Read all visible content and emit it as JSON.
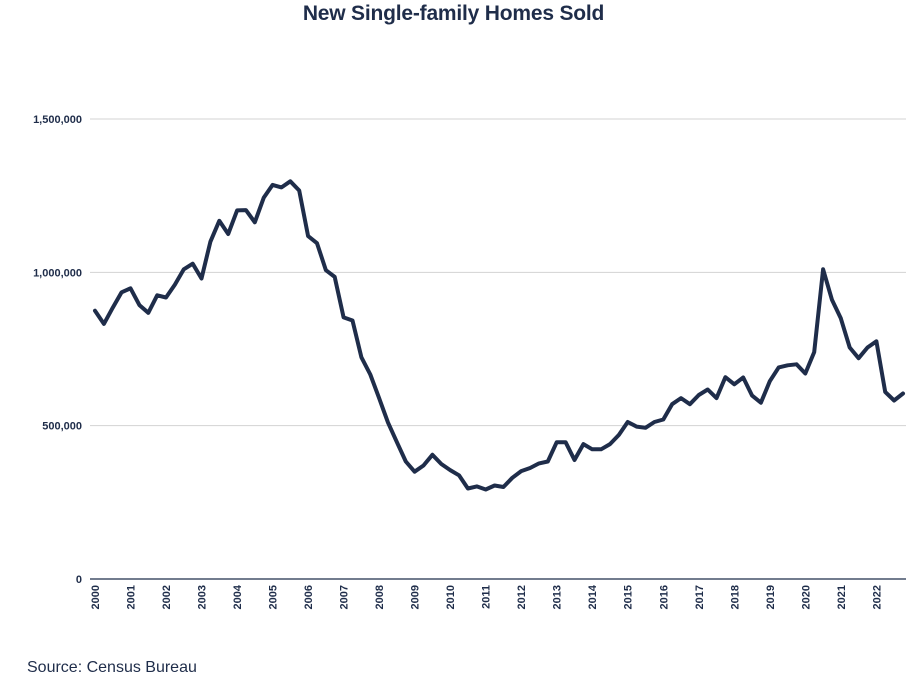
{
  "title": "New Single-family Homes Sold",
  "source": "Source: Census Bureau",
  "colors": {
    "line": "#1f2d4a",
    "grid": "#d3d3d3",
    "axis": "#1f2d4a",
    "text": "#1f2d4a"
  },
  "chart_data": {
    "type": "line",
    "title": "New Single-family Homes Sold",
    "xlabel": "",
    "ylabel": "",
    "ylim": [
      0,
      1500000
    ],
    "xlim": [
      2000,
      2022.75
    ],
    "grid": true,
    "legend": "none",
    "yticks": [
      {
        "value": 0,
        "label": "0"
      },
      {
        "value": 500000,
        "label": "500,000"
      },
      {
        "value": 1000000,
        "label": "1,000,000"
      },
      {
        "value": 1500000,
        "label": "1,500,000"
      }
    ],
    "xticks": [
      {
        "value": 2000,
        "label": "2000"
      },
      {
        "value": 2001,
        "label": "2001"
      },
      {
        "value": 2002,
        "label": "2002"
      },
      {
        "value": 2003,
        "label": "2003"
      },
      {
        "value": 2004,
        "label": "2004"
      },
      {
        "value": 2005,
        "label": "2005"
      },
      {
        "value": 2006,
        "label": "2006"
      },
      {
        "value": 2007,
        "label": "2007"
      },
      {
        "value": 2008,
        "label": "2008"
      },
      {
        "value": 2009,
        "label": "2009"
      },
      {
        "value": 2010,
        "label": "2010"
      },
      {
        "value": 2011,
        "label": "2011"
      },
      {
        "value": 2012,
        "label": "2012"
      },
      {
        "value": 2013,
        "label": "2013"
      },
      {
        "value": 2014,
        "label": "2014"
      },
      {
        "value": 2015,
        "label": "2015"
      },
      {
        "value": 2016,
        "label": "2016"
      },
      {
        "value": 2017,
        "label": "2017"
      },
      {
        "value": 2018,
        "label": "2018"
      },
      {
        "value": 2019,
        "label": "2019"
      },
      {
        "value": 2020,
        "label": "2020"
      },
      {
        "value": 2021,
        "label": "2021"
      },
      {
        "value": 2022,
        "label": "2022"
      }
    ],
    "series": [
      {
        "x": [
          2000,
          2000.25,
          2000.5,
          2000.75,
          2001,
          2001.25,
          2001.5,
          2001.75,
          2002,
          2002.25,
          2002.5,
          2002.75,
          2003,
          2003.25,
          2003.5,
          2003.75,
          2004,
          2004.25,
          2004.5,
          2004.75,
          2005,
          2005.25,
          2005.5,
          2005.75,
          2006,
          2006.25,
          2006.5,
          2006.75,
          2007,
          2007.25,
          2007.5,
          2007.75,
          2008,
          2008.25,
          2008.5,
          2008.75,
          2009,
          2009.25,
          2009.5,
          2009.75,
          2010,
          2010.25,
          2010.5,
          2010.75,
          2011,
          2011.25,
          2011.5,
          2011.75,
          2012,
          2012.25,
          2012.5,
          2012.75,
          2013,
          2013.25,
          2013.5,
          2013.75,
          2014,
          2014.25,
          2014.5,
          2014.75,
          2015,
          2015.25,
          2015.5,
          2015.75,
          2016,
          2016.25,
          2016.5,
          2016.75,
          2017,
          2017.25,
          2017.5,
          2017.75,
          2018,
          2018.25,
          2018.5,
          2018.75,
          2019,
          2019.25,
          2019.5,
          2019.75,
          2020,
          2020.25,
          2020.5,
          2020.75,
          2021,
          2021.25,
          2021.5,
          2021.75,
          2022,
          2022.25,
          2022.5,
          2022.75
        ],
        "values": [
          875000,
          832000,
          885000,
          935000,
          948000,
          893000,
          868000,
          925000,
          918000,
          960000,
          1010000,
          1028000,
          980000,
          1100000,
          1168000,
          1125000,
          1202000,
          1203000,
          1163000,
          1243000,
          1285000,
          1277000,
          1297000,
          1267000,
          1118000,
          1095000,
          1007000,
          985000,
          853000,
          843000,
          723000,
          667000,
          590000,
          510000,
          446000,
          383000,
          350000,
          370000,
          405000,
          375000,
          355000,
          338000,
          295000,
          302000,
          292000,
          305000,
          300000,
          330000,
          352000,
          362000,
          377000,
          383000,
          446000,
          446000,
          388000,
          440000,
          423000,
          423000,
          440000,
          470000,
          512000,
          497000,
          493000,
          512000,
          520000,
          570000,
          590000,
          570000,
          600000,
          618000,
          590000,
          658000,
          635000,
          657000,
          598000,
          575000,
          645000,
          690000,
          697000,
          700000,
          670000,
          740000,
          1010000,
          910000,
          850000,
          755000,
          720000,
          755000,
          775000,
          610000,
          582000,
          605000
        ]
      }
    ]
  }
}
